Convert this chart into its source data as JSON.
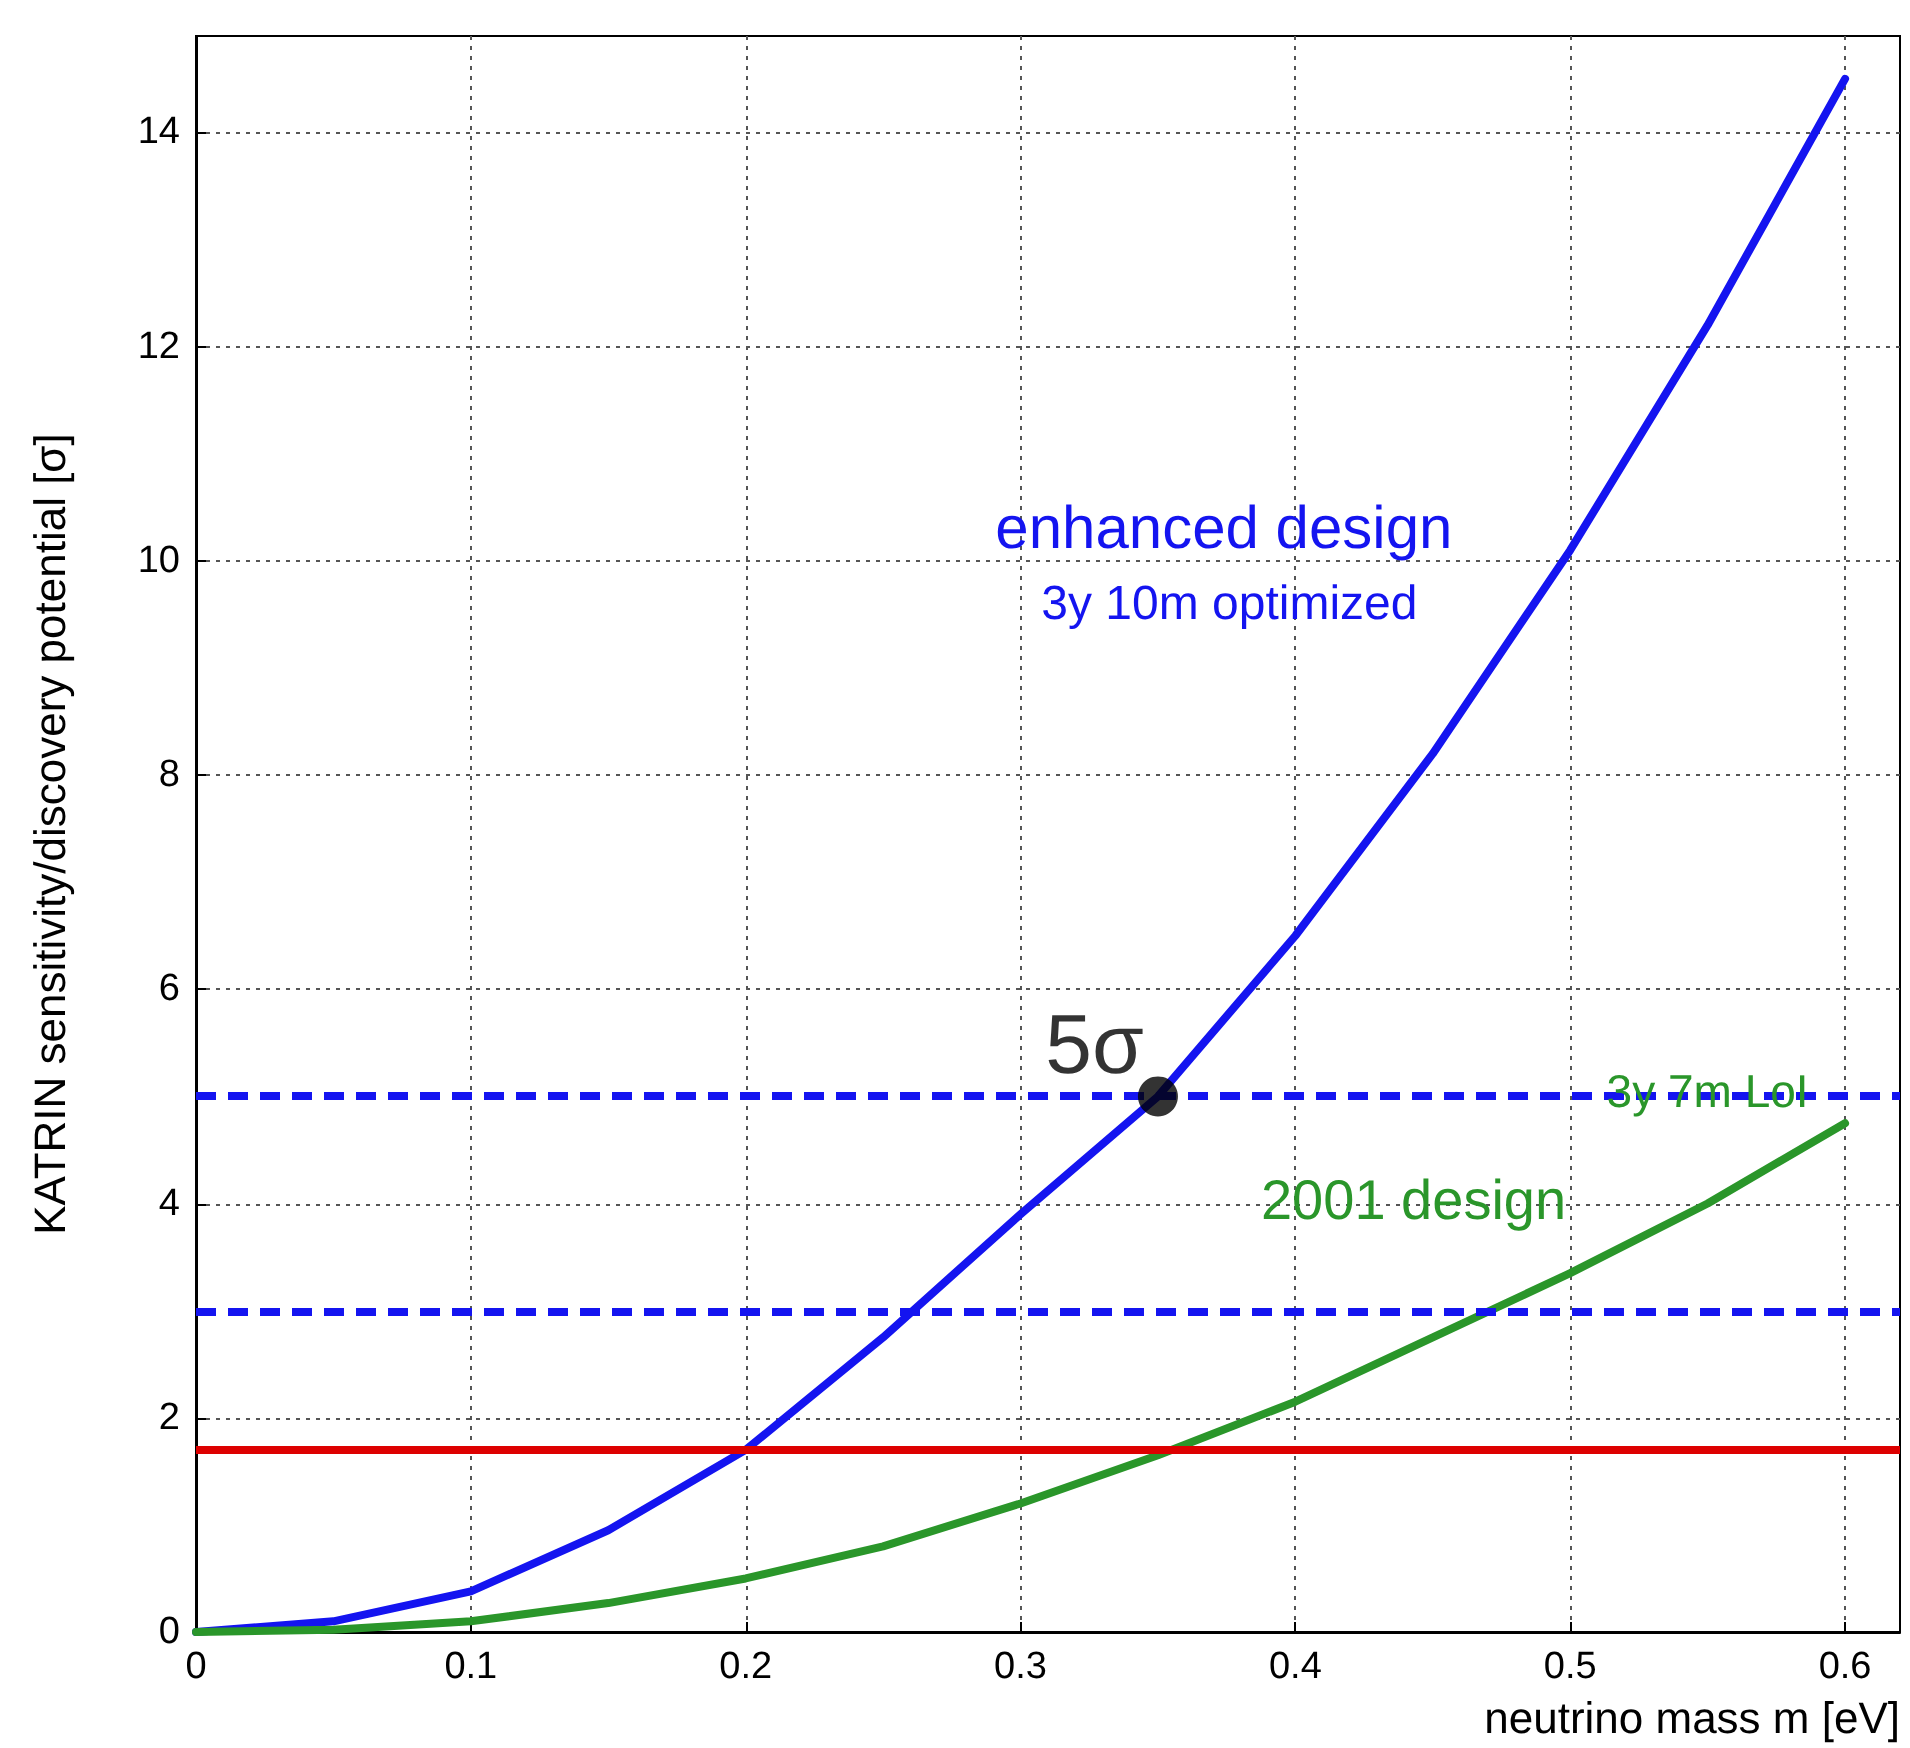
{
  "chart_data": {
    "type": "line",
    "xlabel": "neutrino mass m [eV]",
    "ylabel": "KATRIN sensitivity/discovery potential [σ]",
    "xlim": [
      0,
      0.62
    ],
    "xticks": [
      0,
      0.1,
      0.2,
      0.3,
      0.4,
      0.5,
      0.6
    ],
    "ylim": [
      0,
      14.9
    ],
    "yticks": [
      0,
      2,
      4,
      6,
      8,
      10,
      12,
      14
    ],
    "grid": true,
    "legend": false,
    "line_style": "solid",
    "series": [
      {
        "name": "enhanced design\n3y 10m optimized",
        "color": "#1414f0",
        "x": [
          0,
          0.05,
          0.1,
          0.15,
          0.2,
          0.25,
          0.3,
          0.35,
          0.4,
          0.45,
          0.5,
          0.55,
          0.6
        ],
        "values": [
          0,
          0.1,
          0.38,
          0.95,
          1.7,
          2.75,
          3.9,
          5.0,
          6.5,
          8.2,
          10.1,
          12.2,
          14.5
        ]
      },
      {
        "name": "3y 7m LoI\n2001 design",
        "color": "#2a962a",
        "x": [
          0,
          0.05,
          0.1,
          0.15,
          0.2,
          0.25,
          0.3,
          0.35,
          0.4,
          0.45,
          0.5,
          0.55,
          0.6
        ],
        "values": [
          0,
          0.02,
          0.1,
          0.27,
          0.5,
          0.8,
          1.2,
          1.65,
          2.15,
          2.75,
          3.35,
          4.0,
          4.75
        ]
      },
      {
        "type": "scatter",
        "color": "#000000",
        "x": [
          0.35
        ],
        "values": [
          5.0
        ],
        "value_labels": [
          "5σ"
        ]
      }
    ],
    "ref_lines": [
      {
        "axis": "y",
        "value": 5,
        "color": "#1414f0",
        "line_style": "dashed"
      },
      {
        "axis": "y",
        "value": 3,
        "color": "#1414f0",
        "line_style": "dashed"
      },
      {
        "axis": "y",
        "value": 1.7,
        "color": "#dd0000",
        "line_style": "solid"
      }
    ]
  }
}
